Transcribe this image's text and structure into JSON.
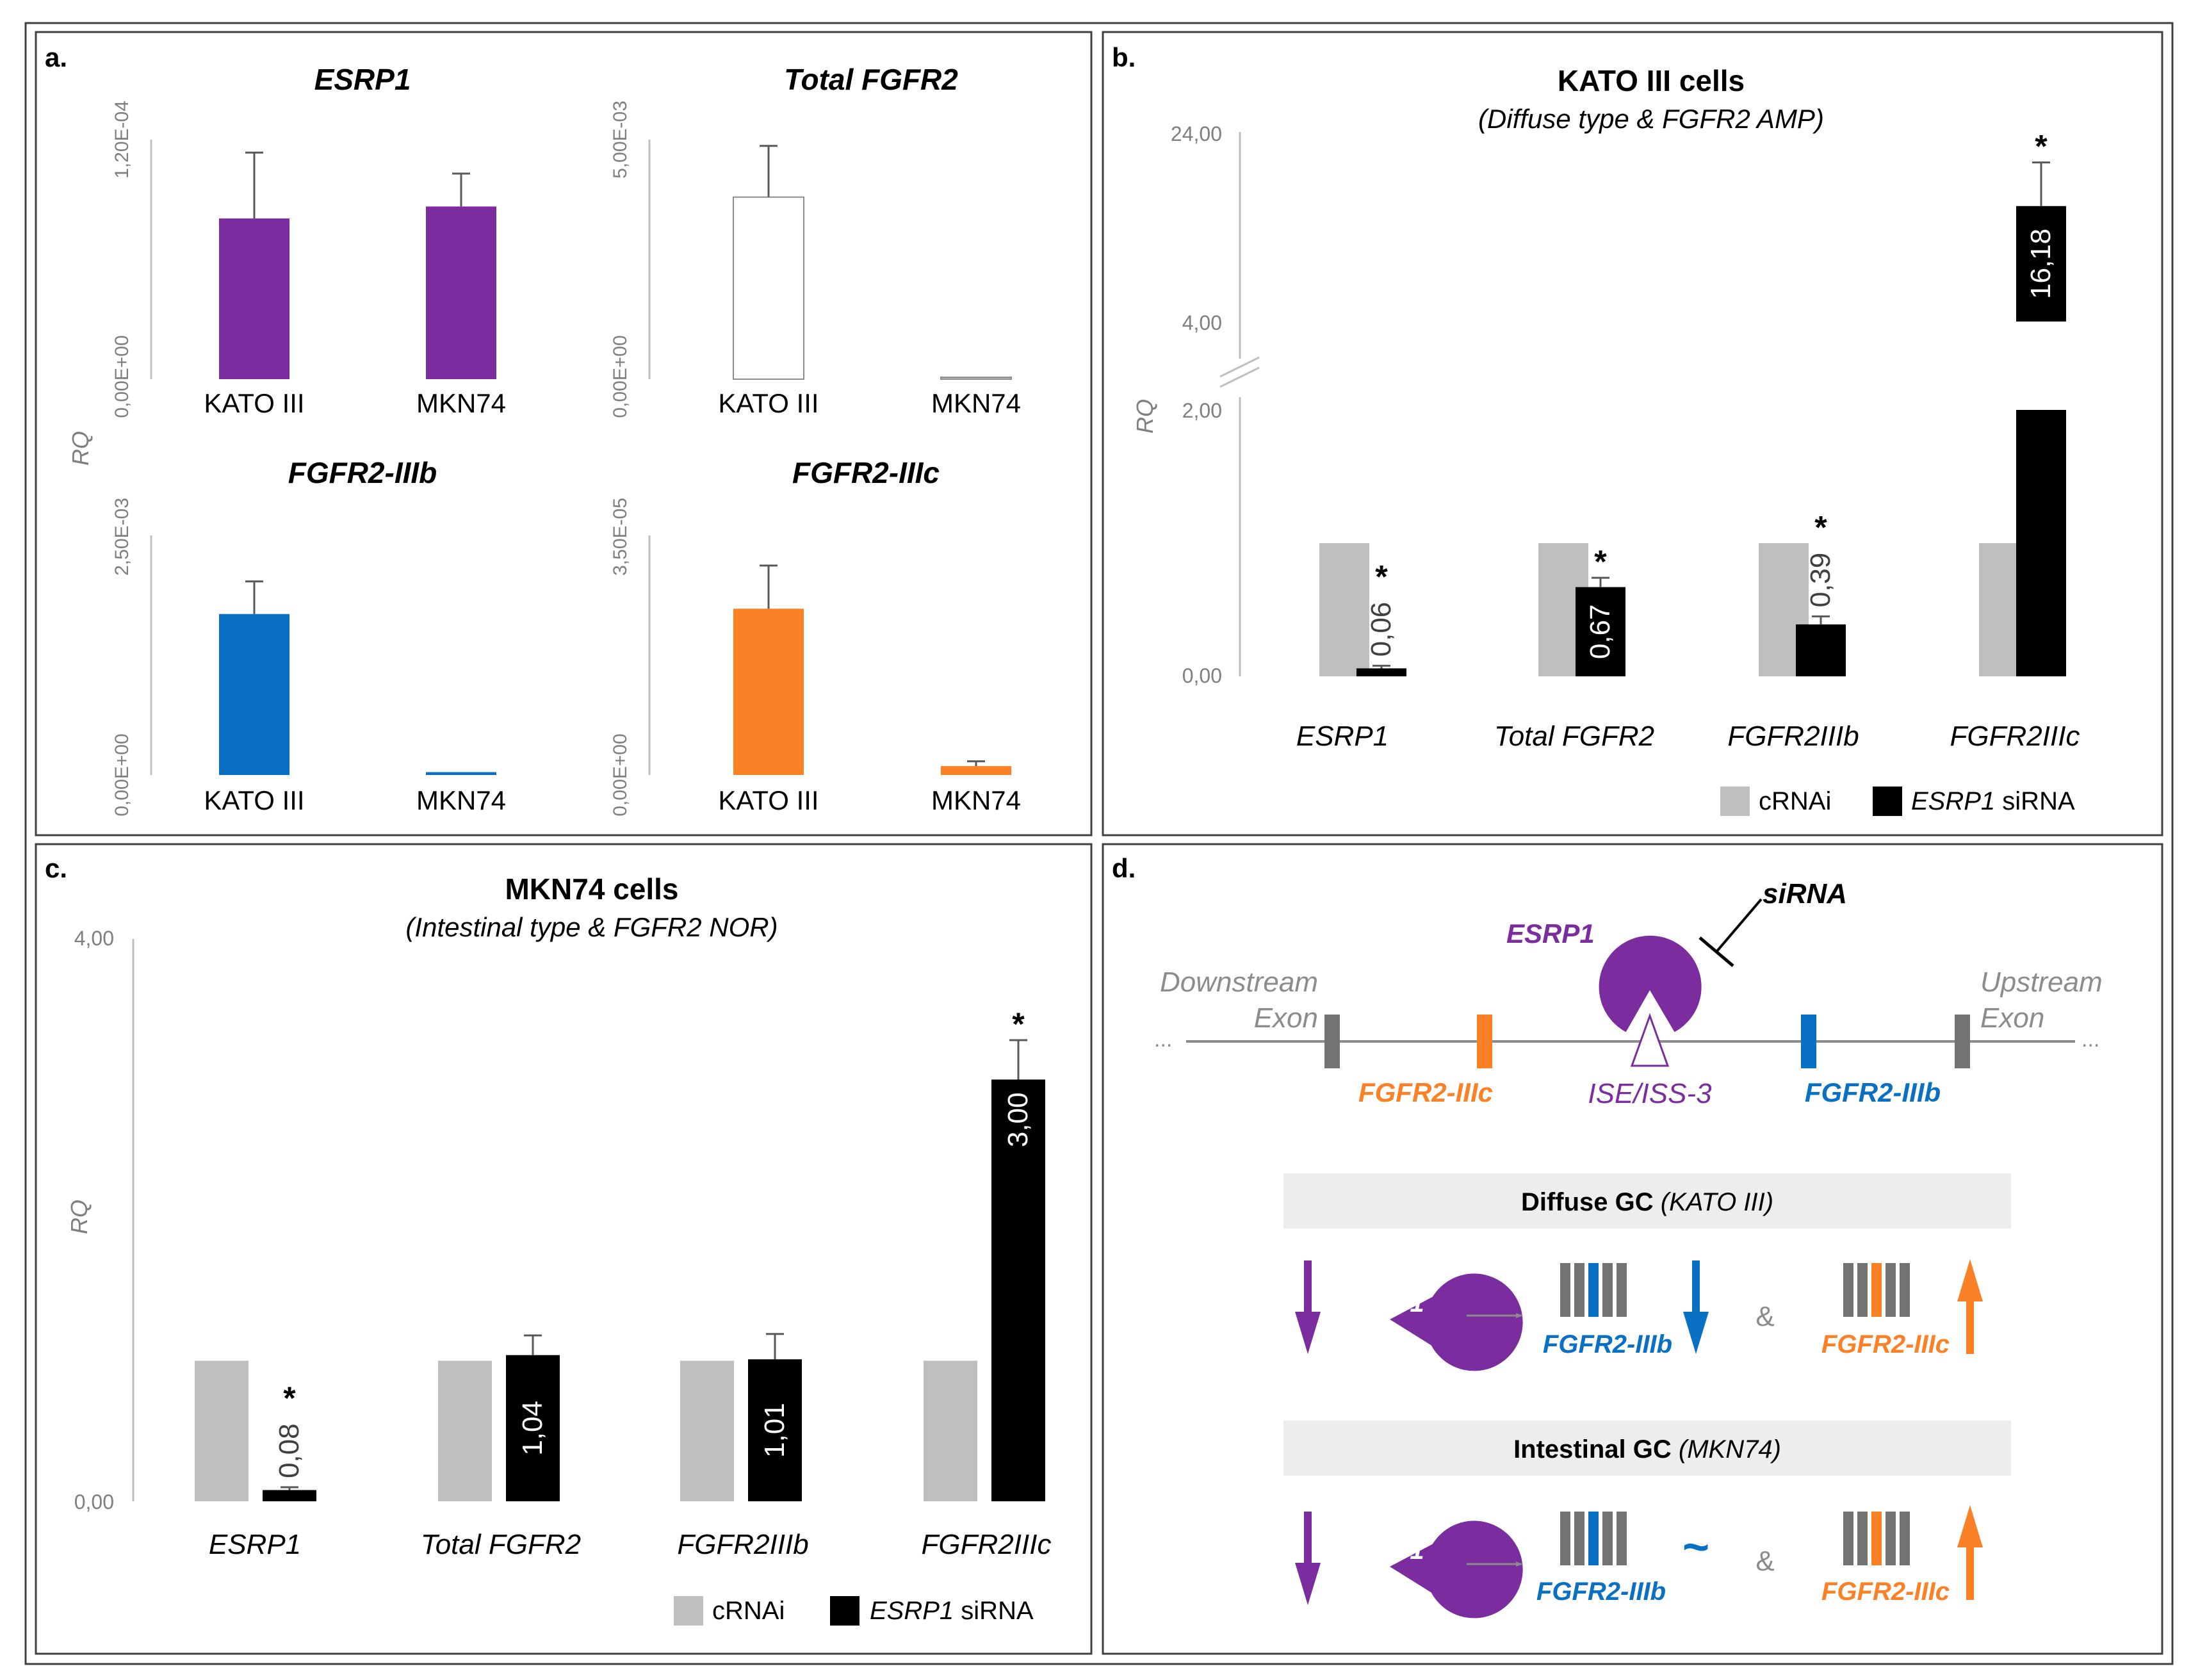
{
  "colors": {
    "purple": "#7B2C9E",
    "blue": "#0A70C3",
    "orange": "#FB8127",
    "grey_bar": "#BFBFBF",
    "black_bar": "#000000",
    "exon_grey": "#737373",
    "axis_grey": "#BFBFBF",
    "text_grey": "#7F7F7F",
    "panel_border": "#404040",
    "gc_box": "#EDEDED"
  },
  "panels": {
    "a": {
      "label": "a.",
      "y_axis_label": "RQ",
      "charts": [
        {
          "title": "ESRP1",
          "ylim": [
            0,
            0.00012
          ],
          "ytick_top": "1,20E-04",
          "ytick_bottom": "0,00E+00",
          "categories": [
            "KATO III",
            "MKN74"
          ],
          "values": [
            8.05e-05,
            8.65e-05
          ],
          "errors": [
            3.3e-05,
            1.65e-05
          ],
          "colors": [
            "#7B2C9E",
            "#7B2C9E"
          ],
          "outline": [
            false,
            false
          ]
        },
        {
          "title": "Total FGFR2",
          "ylim": [
            0,
            0.005
          ],
          "ytick_top": "5,00E-03",
          "ytick_bottom": "0,00E+00",
          "categories": [
            "KATO III",
            "MKN74"
          ],
          "values": [
            0.0038,
            3e-05
          ],
          "errors": [
            0.00107,
            0
          ],
          "colors": [
            "#FFFFFF",
            "#BFBFBF"
          ],
          "outline": [
            true,
            true
          ]
        },
        {
          "title": "FGFR2-IIIb",
          "ylim": [
            0,
            0.0025
          ],
          "ytick_top": "2,50E-03",
          "ytick_bottom": "0,00E+00",
          "categories": [
            "KATO III",
            "MKN74"
          ],
          "values": [
            0.00168,
            3e-05
          ],
          "errors": [
            0.00034,
            0
          ],
          "colors": [
            "#0A70C3",
            "#0A70C3"
          ],
          "outline": [
            false,
            false
          ]
        },
        {
          "title": "FGFR2-IIIc",
          "ylim": [
            0,
            3.5e-05
          ],
          "ytick_top": "3,50E-05",
          "ytick_bottom": "0,00E+00",
          "categories": [
            "KATO III",
            "MKN74"
          ],
          "values": [
            2.43e-05,
            1.3e-06
          ],
          "errors": [
            6.3e-06,
            7e-07
          ],
          "colors": [
            "#FB8127",
            "#FB8127"
          ],
          "outline": [
            false,
            false
          ]
        }
      ]
    },
    "b": {
      "label": "b.",
      "title": "KATO III cells",
      "subtitle": "(Diffuse type & FGFR2 AMP)",
      "y_axis_label": "RQ",
      "ylim_lower": [
        0,
        2
      ],
      "ylim_upper": [
        4,
        24
      ],
      "yticks": [
        "0,00",
        "2,00",
        "4,00",
        "24,00"
      ],
      "categories": [
        "ESRP1",
        "Total FGFR2",
        "FGFR2IIIb",
        "FGFR2IIIc"
      ],
      "series": [
        {
          "name": "cRNAi",
          "values": [
            1,
            1,
            1,
            1
          ],
          "errors": [
            0,
            0,
            0,
            0
          ]
        },
        {
          "name": "siRNA",
          "italic_prefix": "ESRP1",
          "values": [
            0.06,
            0.67,
            0.39,
            16.18
          ],
          "errors": [
            0.02,
            0.07,
            0.06,
            4.6
          ]
        }
      ],
      "value_labels": [
        "0,06",
        "0,67",
        "0,39",
        "16,18"
      ],
      "label_inside": [
        false,
        true,
        false,
        true
      ],
      "significance": [
        "*",
        "*",
        "*",
        "*"
      ],
      "legend_position": "bottom-right"
    },
    "c": {
      "label": "c.",
      "title": "MKN74 cells",
      "subtitle": "(Intestinal type & FGFR2 NOR)",
      "y_axis_label": "RQ",
      "ylim": [
        0,
        4
      ],
      "yticks": [
        "0,00",
        "4,00"
      ],
      "categories": [
        "ESRP1",
        "Total FGFR2",
        "FGFR2IIIb",
        "FGFR2IIIc"
      ],
      "series": [
        {
          "name": "cRNAi",
          "values": [
            1,
            1,
            1,
            1
          ],
          "errors": [
            0,
            0,
            0,
            0
          ]
        },
        {
          "name": "siRNA",
          "italic_prefix": "ESRP1",
          "values": [
            0.08,
            1.04,
            1.01,
            3.0
          ],
          "errors": [
            0.02,
            0.14,
            0.18,
            0.28
          ]
        }
      ],
      "value_labels": [
        "0,08",
        "1,04",
        "1,01",
        "3,00"
      ],
      "label_inside": [
        false,
        true,
        true,
        true
      ],
      "significance": [
        "*",
        "",
        "",
        "*"
      ],
      "legend_position": "bottom-right"
    },
    "d": {
      "label": "d.",
      "sirna": "siRNA",
      "esrp1": "ESRP1",
      "downstream_1": "Downstream",
      "downstream_2": "Exon",
      "upstream_1": "Upstream",
      "upstream_2": "Exon",
      "dots": "...",
      "iiic": "FGFR2-IIIc",
      "iiib": "FGFR2-IIIb",
      "ise": "ISE/ISS-3",
      "diffuse_bold": "Diffuse GC",
      "diffuse_italic": "(KATO III)",
      "intestinal_bold": "Intestinal GC",
      "intestinal_italic": "(MKN74)",
      "amp": "&",
      "tilde": "~"
    }
  }
}
